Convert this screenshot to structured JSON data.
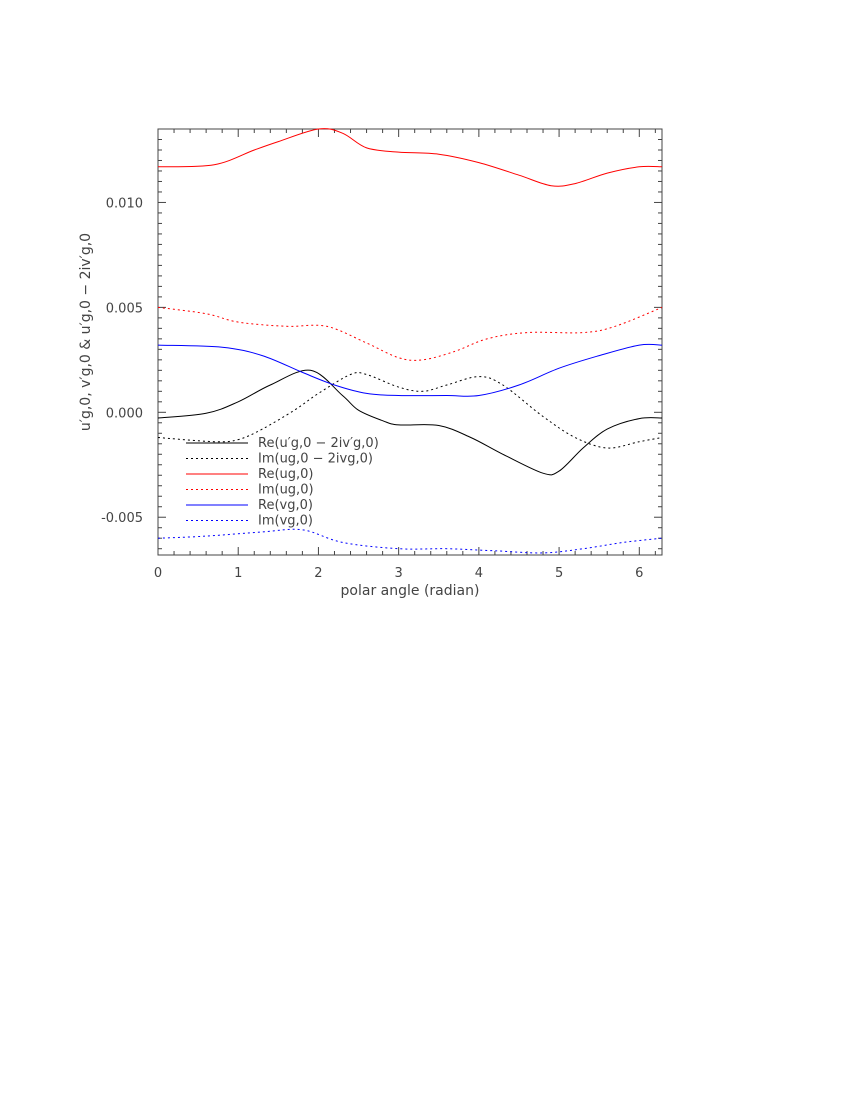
{
  "chart_data": {
    "type": "line",
    "title": "",
    "xlabel": "polar angle (radian)",
    "ylabel": "u′g,0, v′g,0 & u′g,0 − 2iv′g,0",
    "xlim": [
      0,
      6.283
    ],
    "ylim": [
      -0.0068,
      0.0135
    ],
    "x_ticks": [
      0,
      1,
      2,
      3,
      4,
      5,
      6
    ],
    "x_tick_labels": [
      "0",
      "1",
      "2",
      "3",
      "4",
      "5",
      "6"
    ],
    "y_ticks": [
      -0.005,
      0.0,
      0.005,
      0.01
    ],
    "y_tick_labels": [
      "-0.005",
      "0.000",
      "0.005",
      "0.010"
    ],
    "grid": false,
    "legend_position": "lower-left",
    "series": [
      {
        "name": "Re(u′g,0 − 2iv′g,0)",
        "color": "#000000",
        "dash": "solid",
        "points": [
          [
            0,
            -0.00027
          ],
          [
            0.6,
            -5e-05
          ],
          [
            1.0,
            0.0005
          ],
          [
            1.4,
            0.0013
          ],
          [
            1.9,
            0.002
          ],
          [
            2.3,
            0.0008
          ],
          [
            2.5,
            0.0001
          ],
          [
            2.8,
            -0.0004
          ],
          [
            3.0,
            -0.0006
          ],
          [
            3.5,
            -0.00063
          ],
          [
            3.9,
            -0.0012
          ],
          [
            4.3,
            -0.002
          ],
          [
            4.8,
            -0.0029
          ],
          [
            5.0,
            -0.0028
          ],
          [
            5.3,
            -0.0017
          ],
          [
            5.6,
            -0.0008
          ],
          [
            6.0,
            -0.0003
          ],
          [
            6.283,
            -0.00027
          ]
        ]
      },
      {
        "name": "Im(ug,0 − 2ivg,0)",
        "color": "#000000",
        "dash": "dotted",
        "points": [
          [
            0,
            -0.0012
          ],
          [
            0.7,
            -0.0014
          ],
          [
            1.0,
            -0.0013
          ],
          [
            1.3,
            -0.0008
          ],
          [
            1.7,
            0.0001
          ],
          [
            2.0,
            0.0009
          ],
          [
            2.4,
            0.0018
          ],
          [
            2.6,
            0.0018
          ],
          [
            3.0,
            0.0012
          ],
          [
            3.3,
            0.001
          ],
          [
            3.6,
            0.0013
          ],
          [
            4.0,
            0.0017
          ],
          [
            4.3,
            0.0013
          ],
          [
            4.8,
            -0.0002
          ],
          [
            5.2,
            -0.0012
          ],
          [
            5.6,
            -0.0017
          ],
          [
            6.0,
            -0.0014
          ],
          [
            6.283,
            -0.0012
          ]
        ]
      },
      {
        "name": "Re(ug,0)",
        "color": "#ff0000",
        "dash": "solid",
        "points": [
          [
            0,
            0.0117
          ],
          [
            0.7,
            0.0118
          ],
          [
            1.2,
            0.0125
          ],
          [
            1.5,
            0.0129
          ],
          [
            2.0,
            0.0135
          ],
          [
            2.3,
            0.0133
          ],
          [
            2.6,
            0.0126
          ],
          [
            3.0,
            0.0124
          ],
          [
            3.5,
            0.0123
          ],
          [
            4.0,
            0.0119
          ],
          [
            4.5,
            0.0113
          ],
          [
            4.9,
            0.0108
          ],
          [
            5.2,
            0.0109
          ],
          [
            5.6,
            0.0114
          ],
          [
            6.0,
            0.0117
          ],
          [
            6.283,
            0.0117
          ]
        ]
      },
      {
        "name": "Im(ug,0)",
        "color": "#ff0000",
        "dash": "dotted",
        "points": [
          [
            0,
            0.005
          ],
          [
            0.6,
            0.0047
          ],
          [
            1.0,
            0.0043
          ],
          [
            1.6,
            0.0041
          ],
          [
            2.1,
            0.0041
          ],
          [
            2.6,
            0.0033
          ],
          [
            3.0,
            0.0026
          ],
          [
            3.3,
            0.0025
          ],
          [
            3.7,
            0.0029
          ],
          [
            4.1,
            0.0035
          ],
          [
            4.6,
            0.0038
          ],
          [
            5.3,
            0.0038
          ],
          [
            5.7,
            0.0041
          ],
          [
            6.283,
            0.005
          ]
        ]
      },
      {
        "name": "Re(vg,0)",
        "color": "#0000ff",
        "dash": "solid",
        "points": [
          [
            0,
            0.0032
          ],
          [
            0.8,
            0.0031
          ],
          [
            1.3,
            0.0027
          ],
          [
            1.8,
            0.0019
          ],
          [
            2.2,
            0.0013
          ],
          [
            2.6,
            0.0009
          ],
          [
            3.0,
            0.0008
          ],
          [
            3.6,
            0.0008
          ],
          [
            4.0,
            0.0008
          ],
          [
            4.5,
            0.0013
          ],
          [
            5.0,
            0.0021
          ],
          [
            5.5,
            0.0027
          ],
          [
            6.0,
            0.0032
          ],
          [
            6.283,
            0.0032
          ]
        ]
      },
      {
        "name": "Im(vg,0)",
        "color": "#0000ff",
        "dash": "dotted",
        "points": [
          [
            0,
            -0.006
          ],
          [
            0.6,
            -0.0059
          ],
          [
            1.3,
            -0.0057
          ],
          [
            1.8,
            -0.0056
          ],
          [
            2.3,
            -0.0062
          ],
          [
            3.0,
            -0.0065
          ],
          [
            3.6,
            -0.0065
          ],
          [
            4.2,
            -0.0066
          ],
          [
            4.8,
            -0.0067
          ],
          [
            5.3,
            -0.0065
          ],
          [
            5.8,
            -0.0062
          ],
          [
            6.283,
            -0.006
          ]
        ]
      }
    ]
  }
}
